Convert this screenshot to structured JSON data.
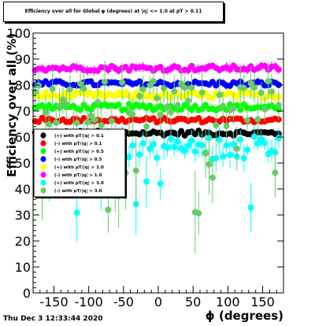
{
  "footer": "Thu Dec  3 12:33:44 2020",
  "chart_data": {
    "type": "scatter",
    "title": "Efficiency over all for Global  φ (degrees) at |η| <= 1.0 at pT > 0.11",
    "xlabel": "ϕ (degrees)",
    "ylabel": "Efficiency over all (%)",
    "xlim": [
      -180,
      180
    ],
    "ylim": [
      0,
      100
    ],
    "xticks": [
      -150,
      -100,
      -50,
      0,
      50,
      100,
      150
    ],
    "yticks": [
      0,
      10,
      20,
      30,
      40,
      50,
      60,
      70,
      80,
      90,
      100
    ],
    "grid": false,
    "legend_position": "left-middle",
    "series": [
      {
        "name": "(+) with pT/|q| > 0.1",
        "color": "#000000",
        "level": 61.5,
        "spread": 0.9,
        "err": 1.0
      },
      {
        "name": "(-) with pT/|q| > 0.1",
        "color": "#ff0000",
        "level": 66.5,
        "spread": 0.9,
        "err": 1.0
      },
      {
        "name": "(+) with pT/|q| > 0.5",
        "color": "#00ff00",
        "level": 71.5,
        "spread": 1.2,
        "err": 1.3
      },
      {
        "name": "(-) with pT/|q| > 0.5",
        "color": "#0000ff",
        "level": 80.5,
        "spread": 1.0,
        "err": 1.2
      },
      {
        "name": "(+) with pT/|q| > 1.0",
        "color": "#ffff00",
        "level": 76.0,
        "spread": 1.2,
        "err": 1.5
      },
      {
        "name": "(-) with pT/|q| > 1.0",
        "color": "#ff00ff",
        "level": 86.5,
        "spread": 1.0,
        "err": 1.5
      },
      {
        "name": "(+) with pT/|q| > 3.0",
        "color": "#00ffff",
        "level": 56.0,
        "spread": 4.5,
        "err": 4.0
      },
      {
        "name": "(-) with pT/|q| > 3.0",
        "color": "#66cc66",
        "level": 73.0,
        "spread": 9.0,
        "err": 6.0
      }
    ]
  }
}
